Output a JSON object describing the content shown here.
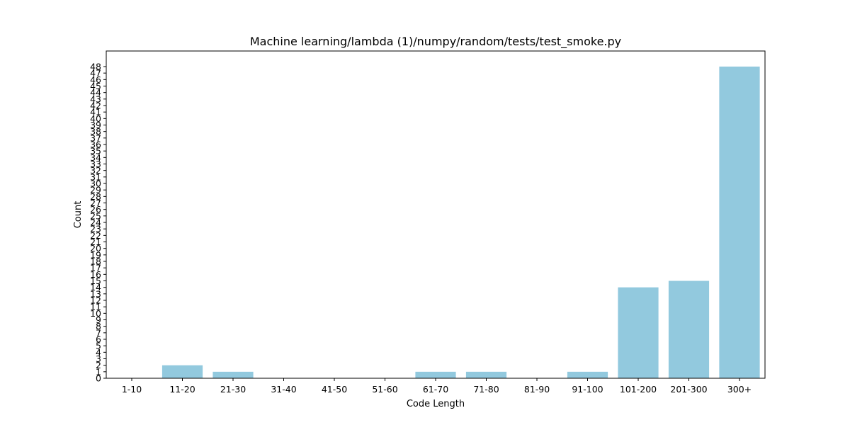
{
  "chart_data": {
    "type": "bar",
    "title": "Machine learning/lambda (1)/numpy/random/tests/test_smoke.py",
    "xlabel": "Code Length",
    "ylabel": "Count",
    "categories": [
      "1-10",
      "11-20",
      "21-30",
      "31-40",
      "41-50",
      "51-60",
      "61-70",
      "71-80",
      "81-90",
      "91-100",
      "101-200",
      "201-300",
      "300+"
    ],
    "values": [
      0,
      2,
      1,
      0,
      0,
      0,
      1,
      1,
      0,
      1,
      14,
      15,
      48
    ],
    "ylim": [
      0,
      50
    ],
    "yticks": [
      0,
      1,
      2,
      3,
      4,
      5,
      6,
      7,
      8,
      9,
      10,
      11,
      12,
      13,
      14,
      15,
      16,
      17,
      18,
      19,
      20,
      21,
      22,
      23,
      24,
      25,
      26,
      27,
      28,
      29,
      30,
      31,
      32,
      33,
      34,
      35,
      36,
      37,
      38,
      39,
      40,
      41,
      42,
      43,
      44,
      45,
      46,
      47,
      48
    ],
    "bar_color": "#92c9de",
    "grid": false,
    "legend": "none"
  }
}
